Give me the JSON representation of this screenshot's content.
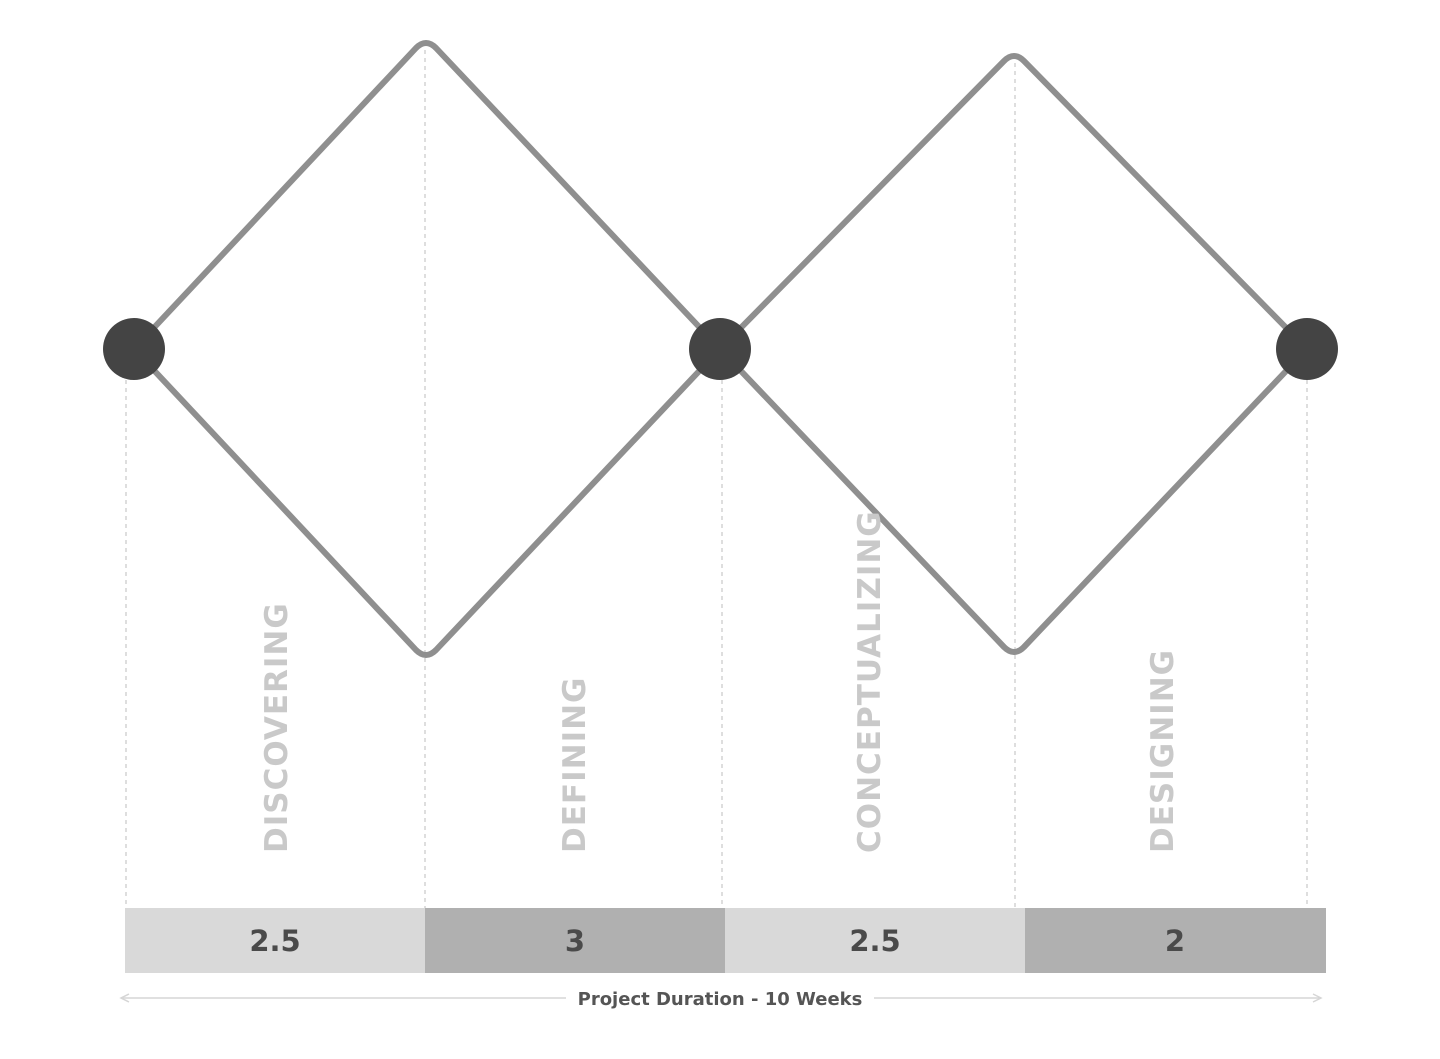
{
  "diagram": {
    "phases": [
      {
        "label": "DISCOVERING",
        "weeks": "2.5"
      },
      {
        "label": "DEFINING",
        "weeks": "3"
      },
      {
        "label": "CONCEPTUALIZING",
        "weeks": "2.5"
      },
      {
        "label": "DESIGNING",
        "weeks": "2"
      }
    ],
    "duration_label": "Project Duration - 10 Weeks",
    "colors": {
      "outline": "#8f8f8f",
      "node": "#444444",
      "guide": "#bdbdbd",
      "bar_light": "#d9d9d9",
      "bar_dark": "#b0b0b0",
      "phase_text": "#c9c9c9",
      "week_text": "#4a4a4a",
      "duration_text": "#555555",
      "arrow": "#d6d6d6"
    }
  }
}
